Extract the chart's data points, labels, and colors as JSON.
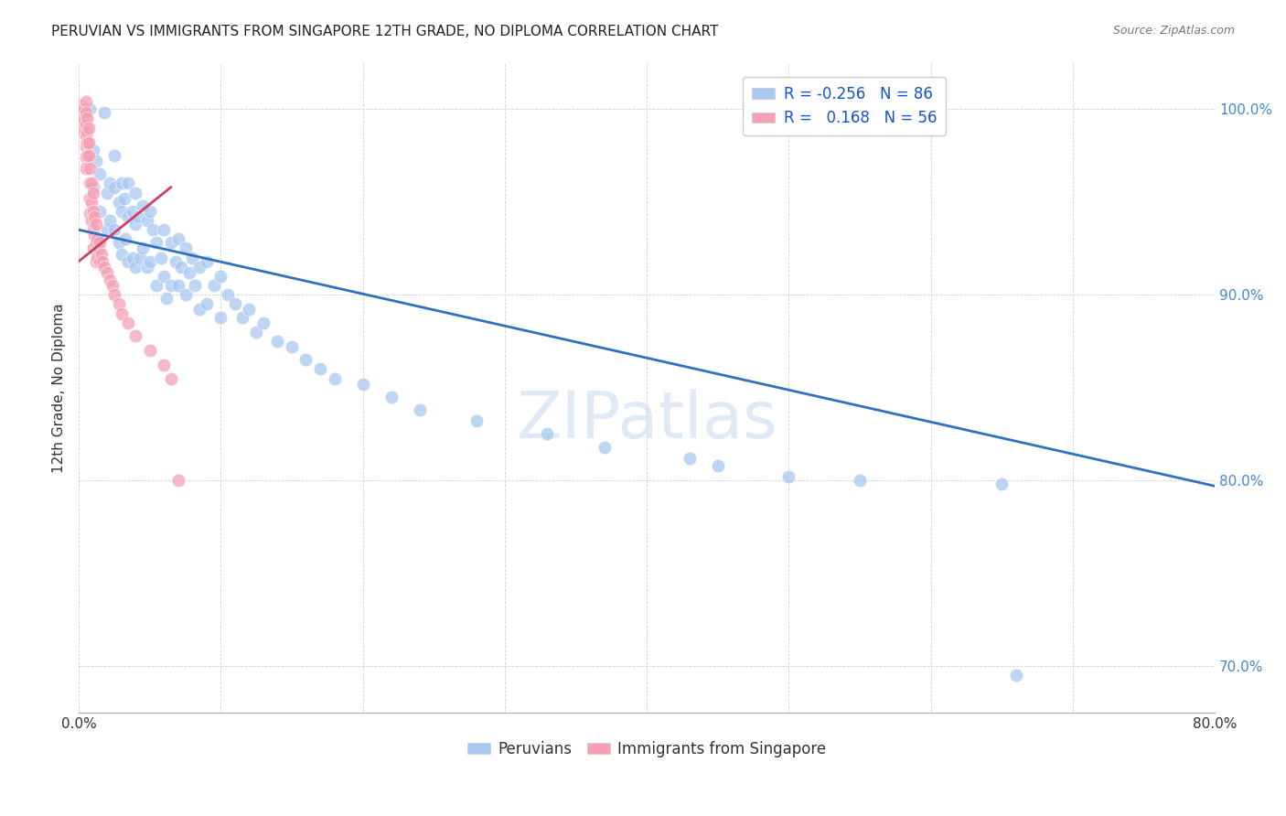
{
  "title": "PERUVIAN VS IMMIGRANTS FROM SINGAPORE 12TH GRADE, NO DIPLOMA CORRELATION CHART",
  "source": "Source: ZipAtlas.com",
  "xlabel_peruvians": "Peruvians",
  "xlabel_singapore": "Immigrants from Singapore",
  "ylabel": "12th Grade, No Diploma",
  "xmin": 0.0,
  "xmax": 0.8,
  "ymin": 0.675,
  "ymax": 1.025,
  "yticks": [
    0.7,
    0.8,
    0.9,
    1.0
  ],
  "ytick_labels": [
    "70.0%",
    "80.0%",
    "90.0%",
    "100.0%"
  ],
  "xticks": [
    0.0,
    0.1,
    0.2,
    0.3,
    0.4,
    0.5,
    0.6,
    0.7,
    0.8
  ],
  "xtick_labels": [
    "0.0%",
    "",
    "",
    "",
    "",
    "",
    "",
    "",
    "80.0%"
  ],
  "legend_r_blue": "-0.256",
  "legend_n_blue": "86",
  "legend_r_pink": "0.168",
  "legend_n_pink": "56",
  "blue_color": "#a8c8f0",
  "pink_color": "#f5a0b5",
  "trend_blue_color": "#3070c0",
  "trend_pink_color": "#d04060",
  "watermark": "ZIPatlas",
  "blue_trend_x0": 0.0,
  "blue_trend_y0": 0.935,
  "blue_trend_x1": 0.8,
  "blue_trend_y1": 0.797,
  "pink_trend_x0": 0.0,
  "pink_trend_y0": 0.918,
  "pink_trend_x1": 0.065,
  "pink_trend_y1": 0.958,
  "blue_x": [
    0.005,
    0.008,
    0.01,
    0.01,
    0.012,
    0.015,
    0.015,
    0.018,
    0.02,
    0.02,
    0.022,
    0.022,
    0.025,
    0.025,
    0.025,
    0.028,
    0.028,
    0.03,
    0.03,
    0.03,
    0.032,
    0.033,
    0.035,
    0.035,
    0.035,
    0.038,
    0.038,
    0.04,
    0.04,
    0.04,
    0.042,
    0.043,
    0.045,
    0.045,
    0.048,
    0.048,
    0.05,
    0.05,
    0.052,
    0.055,
    0.055,
    0.058,
    0.06,
    0.06,
    0.062,
    0.065,
    0.065,
    0.068,
    0.07,
    0.07,
    0.072,
    0.075,
    0.075,
    0.078,
    0.08,
    0.082,
    0.085,
    0.085,
    0.09,
    0.09,
    0.095,
    0.1,
    0.1,
    0.105,
    0.11,
    0.115,
    0.12,
    0.125,
    0.13,
    0.14,
    0.15,
    0.16,
    0.17,
    0.18,
    0.2,
    0.22,
    0.24,
    0.28,
    0.33,
    0.37,
    0.43,
    0.45,
    0.5,
    0.55,
    0.65,
    0.66
  ],
  "blue_y": [
    0.995,
    1.0,
    0.978,
    0.958,
    0.972,
    0.965,
    0.945,
    0.998,
    0.955,
    0.935,
    0.96,
    0.94,
    0.975,
    0.958,
    0.935,
    0.95,
    0.928,
    0.96,
    0.945,
    0.922,
    0.952,
    0.93,
    0.96,
    0.942,
    0.918,
    0.945,
    0.92,
    0.955,
    0.938,
    0.915,
    0.942,
    0.92,
    0.948,
    0.925,
    0.94,
    0.915,
    0.945,
    0.918,
    0.935,
    0.928,
    0.905,
    0.92,
    0.935,
    0.91,
    0.898,
    0.928,
    0.905,
    0.918,
    0.93,
    0.905,
    0.915,
    0.925,
    0.9,
    0.912,
    0.92,
    0.905,
    0.915,
    0.892,
    0.918,
    0.895,
    0.905,
    0.91,
    0.888,
    0.9,
    0.895,
    0.888,
    0.892,
    0.88,
    0.885,
    0.875,
    0.872,
    0.865,
    0.86,
    0.855,
    0.852,
    0.845,
    0.838,
    0.832,
    0.825,
    0.818,
    0.812,
    0.808,
    0.802,
    0.8,
    0.798,
    0.695
  ],
  "pink_x": [
    0.002,
    0.003,
    0.003,
    0.004,
    0.004,
    0.004,
    0.005,
    0.005,
    0.005,
    0.005,
    0.005,
    0.005,
    0.005,
    0.006,
    0.006,
    0.006,
    0.006,
    0.007,
    0.007,
    0.007,
    0.008,
    0.008,
    0.008,
    0.008,
    0.009,
    0.009,
    0.009,
    0.01,
    0.01,
    0.01,
    0.01,
    0.011,
    0.011,
    0.012,
    0.012,
    0.012,
    0.013,
    0.013,
    0.014,
    0.015,
    0.015,
    0.016,
    0.017,
    0.018,
    0.02,
    0.022,
    0.024,
    0.025,
    0.028,
    0.03,
    0.035,
    0.04,
    0.05,
    0.06,
    0.065,
    0.07
  ],
  "pink_y": [
    1.002,
    0.998,
    0.992,
    1.0,
    0.994,
    0.988,
    1.004,
    0.998,
    0.992,
    0.986,
    0.98,
    0.974,
    0.968,
    0.995,
    0.988,
    0.982,
    0.975,
    0.99,
    0.982,
    0.975,
    0.968,
    0.96,
    0.952,
    0.944,
    0.96,
    0.95,
    0.94,
    0.955,
    0.945,
    0.935,
    0.925,
    0.942,
    0.932,
    0.938,
    0.928,
    0.918,
    0.93,
    0.92,
    0.925,
    0.928,
    0.918,
    0.922,
    0.918,
    0.915,
    0.912,
    0.908,
    0.905,
    0.9,
    0.895,
    0.89,
    0.885,
    0.878,
    0.87,
    0.862,
    0.855,
    0.8
  ]
}
